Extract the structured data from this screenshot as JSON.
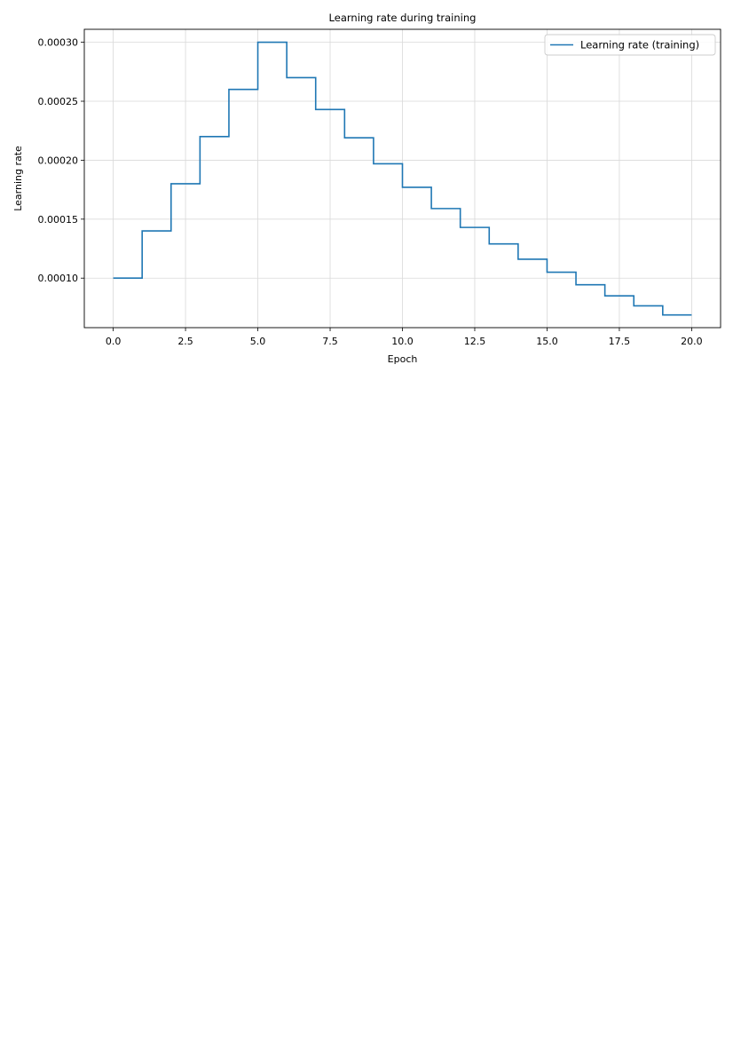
{
  "chart_data": {
    "type": "line",
    "drawstyle": "steps-post",
    "title": "Learning rate during training",
    "xlabel": "Epoch",
    "ylabel": "Learning rate",
    "xlim": [
      -1.0,
      21.0
    ],
    "ylim": [
      5.8e-05,
      0.000311
    ],
    "xticks": [
      0.0,
      2.5,
      5.0,
      7.5,
      10.0,
      12.5,
      15.0,
      17.5,
      20.0
    ],
    "xtick_labels": [
      "0.0",
      "2.5",
      "5.0",
      "7.5",
      "10.0",
      "12.5",
      "15.0",
      "17.5",
      "20.0"
    ],
    "yticks": [
      0.0001,
      0.00015,
      0.0002,
      0.00025,
      0.0003
    ],
    "ytick_labels": [
      "0.00010",
      "0.00015",
      "0.00020",
      "0.00025",
      "0.00030"
    ],
    "grid": true,
    "legend_position": "top-right",
    "series": [
      {
        "name": "Learning rate (training)",
        "color": "#1f77b4",
        "x": [
          0,
          1,
          2,
          3,
          4,
          5,
          6,
          7,
          8,
          9,
          10,
          11,
          12,
          13,
          14,
          15,
          16,
          17,
          18,
          19,
          20
        ],
        "y": [
          0.0001,
          0.00014,
          0.00018,
          0.00022,
          0.00026,
          0.0003,
          0.00027,
          0.000243,
          0.000219,
          0.000197,
          0.000177,
          0.000159,
          0.000143,
          0.000129,
          0.000116,
          0.000105,
          9.44e-05,
          8.5e-05,
          7.65e-05,
          6.88e-05,
          6.88e-05
        ]
      }
    ]
  }
}
